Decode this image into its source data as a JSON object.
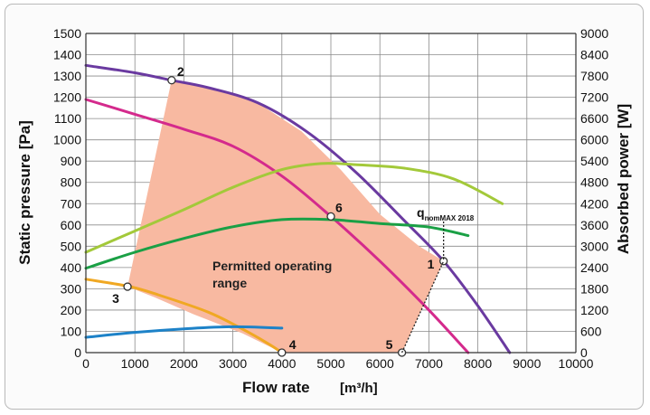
{
  "chart_data": {
    "type": "line",
    "xlabel": "Flow rate",
    "xunit": "[m³/h]",
    "ylabel_left": "Static pressure [Pa]",
    "ylabel_right": "Absorbed power [W]",
    "xlim": [
      0,
      10000
    ],
    "ylim_left": [
      0,
      1500
    ],
    "ylim_right": [
      0,
      9000
    ],
    "x_ticks": [
      "0",
      "1000",
      "2000",
      "3000",
      "4000",
      "5000",
      "6000",
      "7000",
      "8000",
      "9000",
      "10000"
    ],
    "y_left_ticks": [
      "0",
      "100",
      "200",
      "300",
      "400",
      "500",
      "600",
      "700",
      "800",
      "900",
      "1000",
      "1100",
      "1200",
      "1300",
      "1400",
      "1500"
    ],
    "y_right_ticks": [
      "0",
      "600",
      "1200",
      "1800",
      "2400",
      "3000",
      "3600",
      "4200",
      "4800",
      "5400",
      "6000",
      "6600",
      "7200",
      "7800",
      "8400",
      "9000"
    ],
    "grid": true,
    "region": {
      "label_line1": "Permitted operating",
      "label_line2": "range",
      "color": "#f8b9a1",
      "boundary": [
        [
          850,
          310
        ],
        [
          1750,
          1280
        ],
        [
          2700,
          1240
        ],
        [
          3500,
          1175
        ],
        [
          4400,
          1040
        ],
        [
          5200,
          860
        ],
        [
          6000,
          650
        ],
        [
          6800,
          500
        ],
        [
          7300,
          430
        ],
        [
          6450,
          0
        ],
        [
          4000,
          0
        ],
        [
          3200,
          90
        ],
        [
          2200,
          180
        ],
        [
          1400,
          260
        ]
      ]
    },
    "series": [
      {
        "axis": "left",
        "color": "#6a3aa0",
        "x": [
          0,
          1000,
          1750,
          2500,
          3500,
          4500,
          5500,
          6500,
          7300,
          8000,
          8650
        ],
        "y": [
          1350,
          1315,
          1280,
          1245,
          1175,
          1040,
          850,
          620,
          430,
          220,
          0
        ]
      },
      {
        "axis": "left",
        "color": "#d42a8c",
        "x": [
          0,
          1000,
          2000,
          3000,
          4000,
          5000,
          6000,
          7000,
          7800
        ],
        "y": [
          1190,
          1120,
          1050,
          970,
          830,
          640,
          430,
          200,
          0
        ]
      },
      {
        "axis": "left",
        "color": "#f0a823",
        "x": [
          0,
          900,
          1500,
          2500,
          3200,
          3700,
          4000
        ],
        "y": [
          345,
          310,
          270,
          190,
          110,
          45,
          0
        ]
      },
      {
        "axis": "right",
        "color": "#1d82c8",
        "x": [
          0,
          1000,
          2000,
          3000,
          4000
        ],
        "y": [
          430,
          570,
          670,
          730,
          690
        ]
      },
      {
        "axis": "right",
        "color": "#a3c93a",
        "x": [
          0,
          1000,
          2000,
          3000,
          4000,
          4800,
          5500,
          6500,
          7500,
          8500
        ],
        "y": [
          2830,
          3430,
          4030,
          4660,
          5160,
          5330,
          5300,
          5200,
          4900,
          4200
        ]
      },
      {
        "axis": "right",
        "color": "#1aa045",
        "x": [
          0,
          1000,
          2000,
          3000,
          4000,
          5000,
          6000,
          7000,
          7800
        ],
        "y": [
          2380,
          2830,
          3220,
          3550,
          3750,
          3750,
          3640,
          3540,
          3300
        ]
      }
    ],
    "points": [
      {
        "label": "1",
        "x": 7300,
        "y": 430
      },
      {
        "label": "2",
        "x": 1750,
        "y": 1280
      },
      {
        "label": "3",
        "x": 850,
        "y": 310
      },
      {
        "label": "4",
        "x": 4000,
        "y": 0
      },
      {
        "label": "5",
        "x": 6450,
        "y": 0
      },
      {
        "label": "6",
        "x": 5000,
        "y": 640
      }
    ],
    "annotation": {
      "main": "q",
      "sub": "nomMAX 2018",
      "x": 7300
    }
  }
}
